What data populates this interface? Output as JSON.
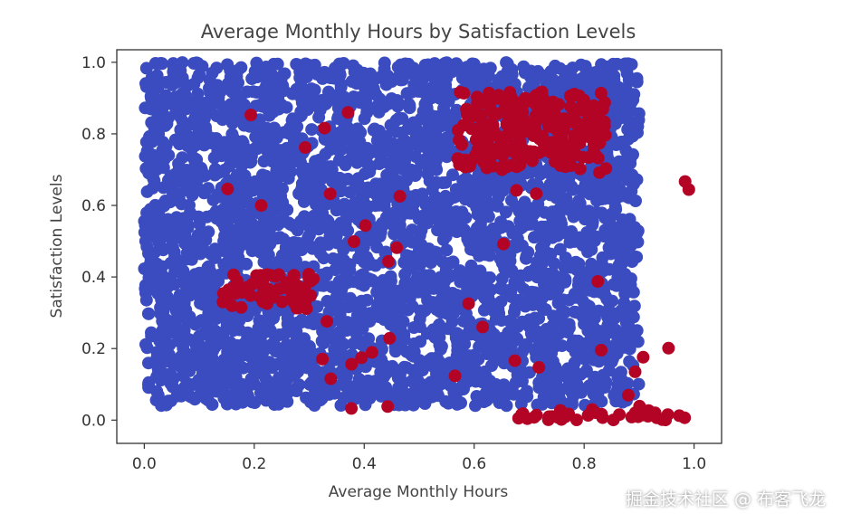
{
  "chart_data": {
    "type": "scatter",
    "title": "Average Monthly Hours by Satisfaction Levels",
    "xlabel": "Average Monthly Hours",
    "ylabel": "Satisfaction Levels",
    "xlim": [
      -0.05,
      1.05
    ],
    "ylim": [
      -0.065,
      1.035
    ],
    "xticks": [
      "0.0",
      "0.2",
      "0.4",
      "0.6",
      "0.8",
      "1.0"
    ],
    "yticks": [
      "0.0",
      "0.2",
      "0.4",
      "0.6",
      "0.8",
      "1.0"
    ],
    "grid": false,
    "legend": false,
    "colors": {
      "stayed": "#3b4cc0",
      "left": "#b40426"
    },
    "series": [
      {
        "color_key": "stayed",
        "regions": [
          {
            "x": [
              0.0,
              0.9
            ],
            "y": [
              0.04,
              1.0
            ],
            "density": "high"
          }
        ]
      },
      {
        "color_key": "left",
        "regions": [
          {
            "x": [
              0.14,
              0.31
            ],
            "y": [
              0.31,
              0.41
            ],
            "density": "high"
          },
          {
            "x": [
              0.57,
              0.84
            ],
            "y": [
              0.7,
              0.92
            ],
            "density": "high"
          },
          {
            "x": [
              0.68,
              1.0
            ],
            "y": [
              0.0,
              0.03
            ],
            "density": "high"
          },
          {
            "x": [
              0.15,
              1.0
            ],
            "y": [
              0.0,
              0.92
            ],
            "density": "sparse"
          }
        ]
      }
    ]
  },
  "watermark": "掘金技术社区 @ 布客飞龙"
}
